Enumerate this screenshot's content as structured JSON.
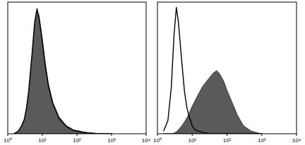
{
  "chart_data": [
    {
      "type": "line",
      "log": "x",
      "tick_labels": "x",
      "xlim": [
        1,
        10000
      ],
      "xticks": [
        {
          "value": 1,
          "label": "10⁰"
        },
        {
          "value": 10,
          "label": "10¹"
        },
        {
          "value": 100,
          "label": "10²"
        },
        {
          "value": 1000,
          "label": "10³"
        },
        {
          "value": 10000,
          "label": "10⁴"
        }
      ],
      "ylim": [
        0,
        100
      ],
      "x": [
        1.5,
        2,
        2.5,
        3,
        3.5,
        4,
        5,
        6,
        7,
        8,
        10,
        12,
        15,
        20,
        30,
        40,
        50,
        60,
        80,
        100,
        150,
        200,
        300,
        500,
        800,
        1000
      ],
      "series": [
        {
          "type": "area",
          "color": "#5a5a5a",
          "values": [
            0,
            2,
            5,
            10,
            18,
            30,
            58,
            82,
            93,
            90,
            72,
            55,
            38,
            24,
            13,
            9,
            6,
            5,
            3,
            2.5,
            1.5,
            1,
            0.5,
            0,
            0,
            0
          ]
        },
        {
          "type": "line",
          "color": "#000000",
          "values": [
            0,
            2,
            6,
            11,
            20,
            32,
            60,
            85,
            95,
            88,
            70,
            52,
            36,
            23,
            12,
            8,
            5.5,
            4,
            2.5,
            2,
            1,
            0.6,
            0.3,
            0,
            0,
            0
          ]
        }
      ]
    },
    {
      "type": "line",
      "log": "x",
      "tick_labels": "x",
      "xlim": [
        1,
        10000
      ],
      "xticks": [
        {
          "value": 1,
          "label": "10⁰"
        },
        {
          "value": 10,
          "label": "10¹"
        },
        {
          "value": 100,
          "label": "10²"
        },
        {
          "value": 1000,
          "label": "10³"
        },
        {
          "value": 10000,
          "label": "10⁴"
        }
      ],
      "ylim": [
        0,
        100
      ],
      "x": [
        1.5,
        2,
        2.5,
        3,
        3.5,
        4,
        5,
        6,
        7,
        8,
        10,
        12,
        15,
        20,
        30,
        40,
        50,
        60,
        80,
        100,
        150,
        200,
        300,
        500,
        800,
        1000
      ],
      "series": [
        {
          "type": "area",
          "color": "#5a5a5a",
          "values": [
            0,
            0,
            0,
            0.5,
            1.5,
            3,
            6,
            9,
            12,
            15,
            21,
            25,
            30,
            36,
            42,
            46,
            48,
            46,
            40,
            33,
            22,
            14,
            6,
            2,
            0.5,
            0
          ]
        },
        {
          "type": "line",
          "color": "#000000",
          "values": [
            2,
            10,
            35,
            75,
            96,
            85,
            55,
            32,
            20,
            14,
            6,
            3,
            2,
            1,
            0.3,
            0,
            0,
            0,
            0,
            0,
            0,
            0,
            0,
            0,
            0,
            0
          ]
        }
      ]
    }
  ]
}
